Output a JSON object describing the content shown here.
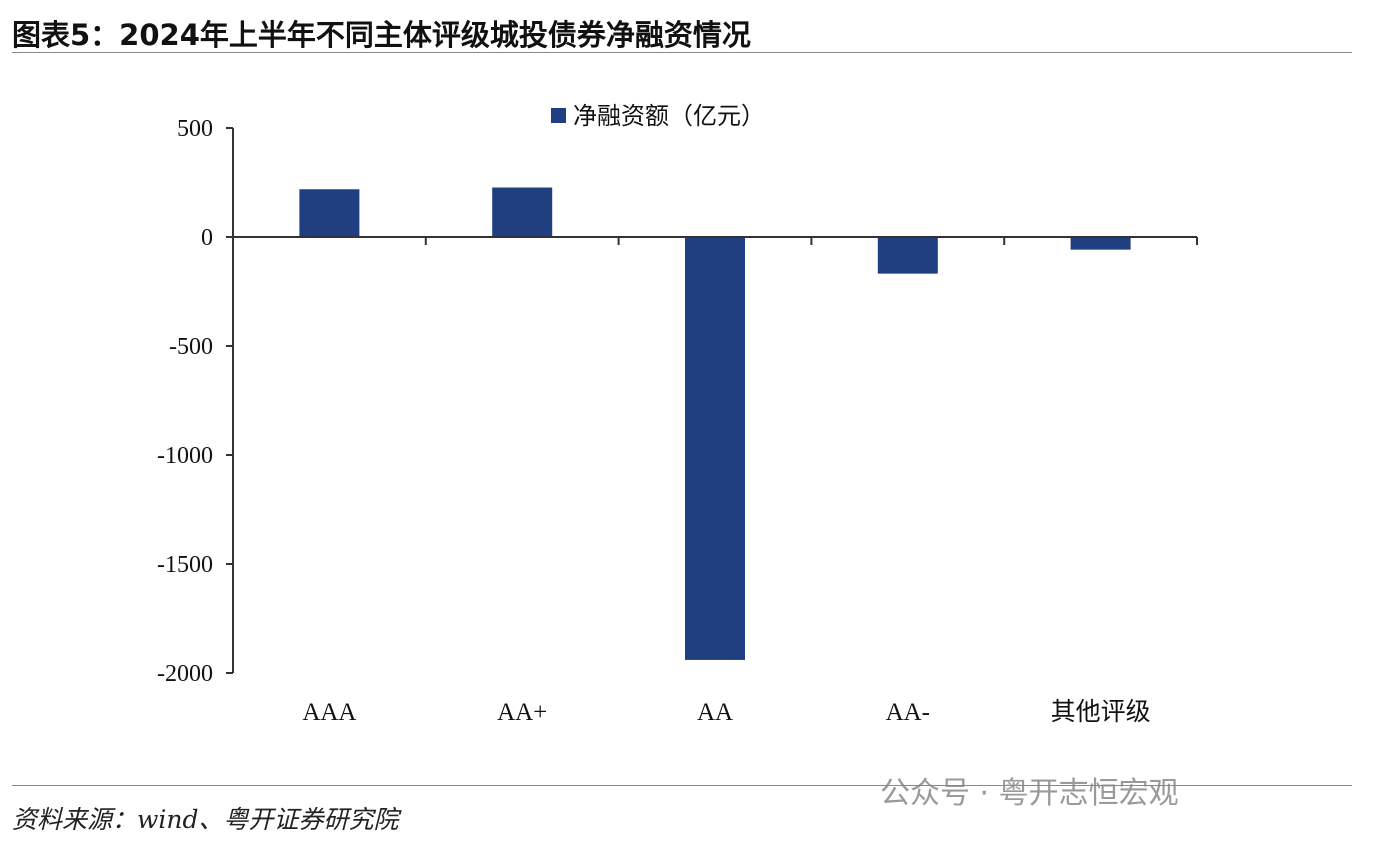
{
  "title": "图表5：2024年上半年不同主体评级城投债券净融资情况",
  "source": "资料来源：wind、粤开证券研究院",
  "watermark": "公众号 · 粤开志恒宏观",
  "chart_data": {
    "type": "bar",
    "title": "",
    "xlabel": "",
    "ylabel": "",
    "categories": [
      "AAA",
      "AA+",
      "AA",
      "AA-",
      "其他评级"
    ],
    "series": [
      {
        "name": "净融资额（亿元）",
        "values": [
          219,
          227,
          -1940,
          -168,
          -58
        ],
        "color": "#1f3f80"
      }
    ],
    "ylim": [
      -2000,
      500
    ],
    "yticks": [
      500,
      0,
      -500,
      -1000,
      -1500,
      -2000
    ],
    "grid": false,
    "legend": "top-center"
  }
}
